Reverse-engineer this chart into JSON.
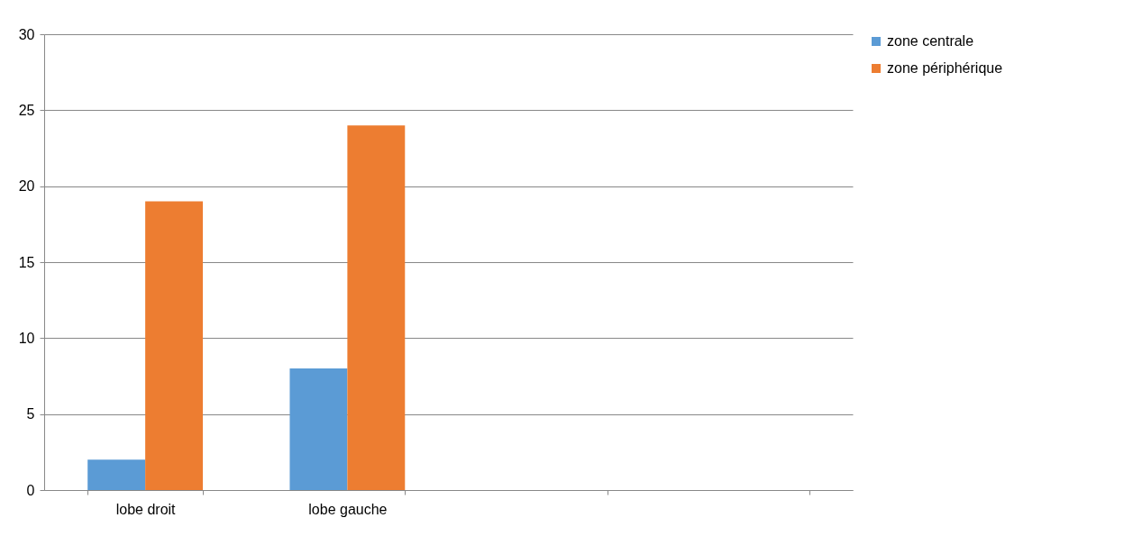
{
  "chart_data": {
    "type": "bar",
    "categories": [
      "lobe droit",
      "lobe gauche",
      null,
      null
    ],
    "series": [
      {
        "name": "zone centrale",
        "color": "#5b9bd5",
        "values": [
          2,
          8,
          null,
          null
        ]
      },
      {
        "name": "zone périphérique",
        "color": "#ed7d31",
        "values": [
          19,
          24,
          null,
          null
        ]
      }
    ],
    "ylim": [
      0,
      30
    ],
    "yticks": [
      0,
      5,
      10,
      15,
      20,
      25,
      30
    ],
    "grid": "y",
    "legend": "right"
  }
}
